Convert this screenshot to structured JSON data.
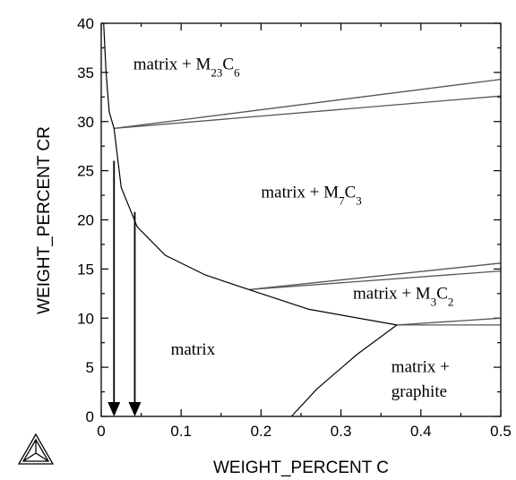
{
  "chart_data": {
    "type": "line",
    "title": "",
    "xlabel": "WEIGHT_PERCENT C",
    "ylabel": "WEIGHT_PERCENT CR",
    "xlim": [
      0,
      0.5
    ],
    "ylim": [
      0,
      40
    ],
    "x_ticks": [
      {
        "value": 0,
        "label": "0"
      },
      {
        "value": 0.1,
        "label": "0.1"
      },
      {
        "value": 0.2,
        "label": "0.2"
      },
      {
        "value": 0.3,
        "label": "0.3"
      },
      {
        "value": 0.4,
        "label": "0.4"
      },
      {
        "value": 0.5,
        "label": "0.5"
      }
    ],
    "y_ticks": [
      {
        "value": 0,
        "label": "0"
      },
      {
        "value": 5,
        "label": "5"
      },
      {
        "value": 10,
        "label": "10"
      },
      {
        "value": 15,
        "label": "15"
      },
      {
        "value": 20,
        "label": "20"
      },
      {
        "value": 25,
        "label": "25"
      },
      {
        "value": 30,
        "label": "30"
      },
      {
        "value": 35,
        "label": "35"
      },
      {
        "value": 40,
        "label": "40"
      }
    ],
    "minor_x_ticks": [
      0.05,
      0.15,
      0.25,
      0.35,
      0.45
    ],
    "minor_y_ticks": [
      2.5,
      7.5,
      12.5,
      17.5,
      22.5,
      27.5,
      32.5,
      37.5
    ],
    "grid": false,
    "boundaries": [
      {
        "points": [
          [
            0.003,
            40
          ],
          [
            0.006,
            35
          ],
          [
            0.01,
            31
          ],
          [
            0.016,
            29.3
          ],
          [
            0.025,
            23.3
          ],
          [
            0.045,
            19.3
          ],
          [
            0.08,
            16.4
          ],
          [
            0.13,
            14.4
          ],
          [
            0.185,
            12.9
          ],
          [
            0.26,
            10.9
          ],
          [
            0.37,
            9.3
          ]
        ]
      },
      {
        "points": [
          [
            0.238,
            0
          ],
          [
            0.27,
            2.8
          ],
          [
            0.32,
            6.3
          ],
          [
            0.37,
            9.3
          ]
        ]
      }
    ],
    "tielines": [
      {
        "points": [
          [
            0.016,
            29.3
          ],
          [
            0.5,
            34.3
          ]
        ]
      },
      {
        "points": [
          [
            0.016,
            29.3
          ],
          [
            0.5,
            32.6
          ]
        ]
      },
      {
        "points": [
          [
            0.185,
            12.9
          ],
          [
            0.5,
            15.6
          ]
        ]
      },
      {
        "points": [
          [
            0.185,
            12.9
          ],
          [
            0.5,
            14.8
          ]
        ]
      },
      {
        "points": [
          [
            0.37,
            9.3
          ],
          [
            0.5,
            10.0
          ]
        ]
      },
      {
        "points": [
          [
            0.37,
            9.3
          ],
          [
            0.5,
            9.3
          ]
        ]
      }
    ],
    "arrows": [
      {
        "x": 0.016,
        "from_y": 26.0,
        "to_y": 0
      },
      {
        "x": 0.042,
        "from_y": 20.8,
        "to_y": 0
      }
    ],
    "region_labels": [
      {
        "id": "m23c6",
        "x": 0.04,
        "y": 35.3
      },
      {
        "id": "m7c3",
        "x": 0.2,
        "y": 22.3
      },
      {
        "id": "m3c2",
        "x": 0.315,
        "y": 12.0
      },
      {
        "id": "matrix",
        "x": 0.087,
        "y": 6.3
      },
      {
        "id": "graphite1",
        "x": 0.363,
        "y": 4.5
      },
      {
        "id": "graphite2",
        "x": 0.363,
        "y": 2.0
      }
    ]
  },
  "labels": {
    "m23c6": {
      "base": "matrix + M",
      "sub1": "23",
      "mid": "C",
      "sub2": "6"
    },
    "m7c3": {
      "base": "matrix + M",
      "sub1": "7",
      "mid": "C",
      "sub2": "3"
    },
    "m3c2": {
      "base": "matrix + M",
      "sub1": "3",
      "mid": "C",
      "sub2": "2"
    },
    "matrix": "matrix",
    "graphite_line1": "matrix +",
    "graphite_line2": "graphite"
  },
  "logo": {
    "icon": "thermo-calc-triangle-icon"
  }
}
